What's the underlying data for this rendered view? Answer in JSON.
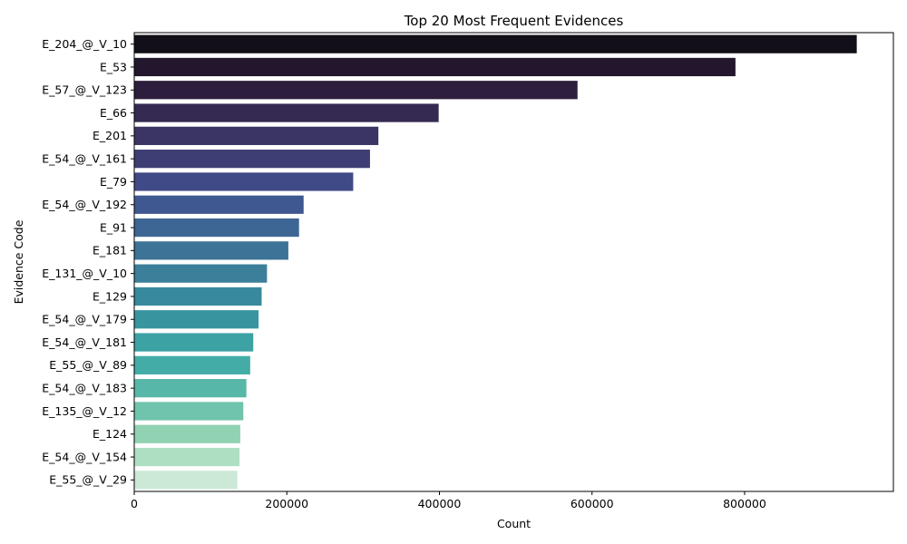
{
  "chart_data": {
    "type": "bar",
    "orientation": "horizontal",
    "title": "Top 20 Most Frequent Evidences",
    "xlabel": "Count",
    "ylabel": "Evidence Code",
    "xlim": [
      0,
      995000
    ],
    "xticks": [
      0,
      200000,
      400000,
      600000,
      800000
    ],
    "xtick_labels": [
      "0",
      "200000",
      "400000",
      "600000",
      "800000"
    ],
    "grid": false,
    "legend": "none",
    "palette": "mako (dark to light)",
    "categories": [
      "E_204_@_V_10",
      "E_53",
      "E_57_@_V_123",
      "E_66",
      "E_201",
      "E_54_@_V_161",
      "E_79",
      "E_54_@_V_192",
      "E_91",
      "E_181",
      "E_131_@_V_10",
      "E_129",
      "E_54_@_V_179",
      "E_54_@_V_181",
      "E_55_@_V_89",
      "E_54_@_V_183",
      "E_135_@_V_12",
      "E_124",
      "E_54_@_V_154",
      "E_55_@_V_29"
    ],
    "values": [
      947000,
      788000,
      581000,
      399000,
      320000,
      309000,
      287000,
      222000,
      216000,
      202000,
      174000,
      167000,
      163000,
      156000,
      152000,
      147000,
      143000,
      139000,
      138000,
      135000
    ],
    "colors": [
      "#130f18",
      "#22172c",
      "#2d1e3e",
      "#352a52",
      "#3b3563",
      "#3e3e74",
      "#3f4a86",
      "#3f5891",
      "#3d6694",
      "#3d7397",
      "#3b7f9a",
      "#38899d",
      "#3895a0",
      "#3ca2a3",
      "#43aca6",
      "#57b8a9",
      "#70c3ac",
      "#91d2b2",
      "#afdfc2",
      "#cce8d6"
    ]
  }
}
